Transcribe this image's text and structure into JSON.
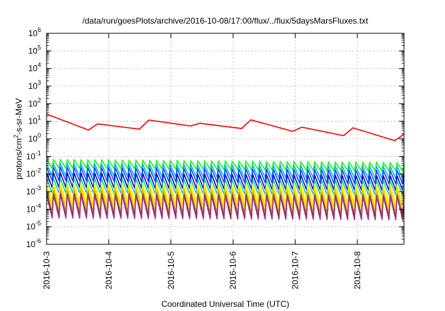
{
  "chart_data": {
    "type": "line",
    "title": "/data/run/goesPlots/archive/2016-10-08/17:00/flux/../flux/5daysMarsFluxes.txt",
    "xlabel": "Coordinated Universal Time (UTC)",
    "ylabel_parts": [
      "protons/cm",
      "2",
      "-s-sr-MeV"
    ],
    "x_scale": "time",
    "xlim": [
      "2016-10-03T00:00",
      "2016-10-08T18:00"
    ],
    "x_ticks": [
      "2016-10-3",
      "2016-10-4",
      "2016-10-5",
      "2016-10-6",
      "2016-10-7",
      "2016-10-8"
    ],
    "y_scale": "log",
    "ylim": [
      1e-06,
      1000000.0
    ],
    "y_tick_exponents": [
      -6,
      -5,
      -4,
      -3,
      -2,
      -1,
      0,
      1,
      2,
      3,
      4,
      5,
      6
    ],
    "y_tick_base": "10",
    "grid": true,
    "legend": "none",
    "series": [
      {
        "color": "#ff0000",
        "pattern": "sawtooth",
        "x": [
          "2016-10-03T00:00",
          "2016-10-03T06:00",
          "2016-10-03T12:00",
          "2016-10-03T18:00",
          "2016-10-04T00:00",
          "2016-10-04T06:00",
          "2016-10-04T12:00",
          "2016-10-04T18:00",
          "2016-10-05T00:00",
          "2016-10-05T06:00",
          "2016-10-05T12:00",
          "2016-10-05T18:00",
          "2016-10-06T00:00",
          "2016-10-06T06:00",
          "2016-10-06T12:00",
          "2016-10-06T18:00",
          "2016-10-07T00:00",
          "2016-10-07T06:00",
          "2016-10-07T12:00",
          "2016-10-07T18:00",
          "2016-10-08T00:00",
          "2016-10-08T06:00",
          "2016-10-08T12:00",
          "2016-10-08T18:00"
        ],
        "y": [
          18,
          15,
          6,
          4,
          9,
          7,
          5,
          12,
          25,
          9,
          5,
          3.5,
          3,
          9,
          6,
          3,
          4,
          2.5,
          1,
          2,
          3.5,
          2,
          1,
          1.3
        ],
        "teeth": 7,
        "jump": 2.0
      },
      {
        "color": "#00ff00",
        "pattern": "sawtooth",
        "x": [
          "2016-10-03T00:00",
          "2016-10-08T18:00"
        ],
        "y": [
          0.038,
          0.025
        ],
        "teeth": 52,
        "jump": 3.0
      },
      {
        "color": "#00aaff",
        "pattern": "sawtooth",
        "x": [
          "2016-10-03T00:00",
          "2016-10-08T18:00"
        ],
        "y": [
          0.017,
          0.012
        ],
        "teeth": 52,
        "jump": 5.0
      },
      {
        "color": "#0044ff",
        "pattern": "sawtooth",
        "x": [
          "2016-10-03T00:00",
          "2016-10-08T18:00"
        ],
        "y": [
          0.01,
          0.0065
        ],
        "teeth": 52,
        "jump": 6.0
      },
      {
        "color": "#0000c0",
        "pattern": "sawtooth",
        "x": [
          "2016-10-03T00:00",
          "2016-10-08T18:00"
        ],
        "y": [
          0.0045,
          0.003
        ],
        "teeth": 52,
        "jump": 7.0
      },
      {
        "color": "#00c8c8",
        "pattern": "sawtooth",
        "x": [
          "2016-10-03T00:00",
          "2016-10-08T18:00"
        ],
        "y": [
          0.0022,
          0.0016
        ],
        "teeth": 52,
        "jump": 7.0
      },
      {
        "color": "#ffff00",
        "pattern": "sawtooth",
        "x": [
          "2016-10-03T00:00",
          "2016-10-08T18:00"
        ],
        "y": [
          0.001,
          0.00075
        ],
        "teeth": 52,
        "jump": 12.0
      },
      {
        "color": "#ffcc00",
        "pattern": "sawtooth",
        "x": [
          "2016-10-03T00:00",
          "2016-10-08T18:00"
        ],
        "y": [
          0.00055,
          0.0004
        ],
        "teeth": 52,
        "jump": 12.0
      },
      {
        "color": "#c8a000",
        "pattern": "sawtooth",
        "x": [
          "2016-10-03T00:00",
          "2016-10-08T18:00"
        ],
        "y": [
          0.0003,
          0.00022
        ],
        "teeth": 52,
        "jump": 15.0
      },
      {
        "color": "#800080",
        "pattern": "sawtooth",
        "x": [
          "2016-10-03T00:00",
          "2016-10-08T18:00"
        ],
        "y": [
          0.00018,
          0.00014
        ],
        "teeth": 52,
        "jump": 18.0
      },
      {
        "color": "#a03c78",
        "pattern": "sawtooth",
        "x": [
          "2016-10-03T00:00",
          "2016-10-08T18:00"
        ],
        "y": [
          0.00014,
          0.00011
        ],
        "teeth": 52,
        "jump": 22.0
      }
    ]
  }
}
